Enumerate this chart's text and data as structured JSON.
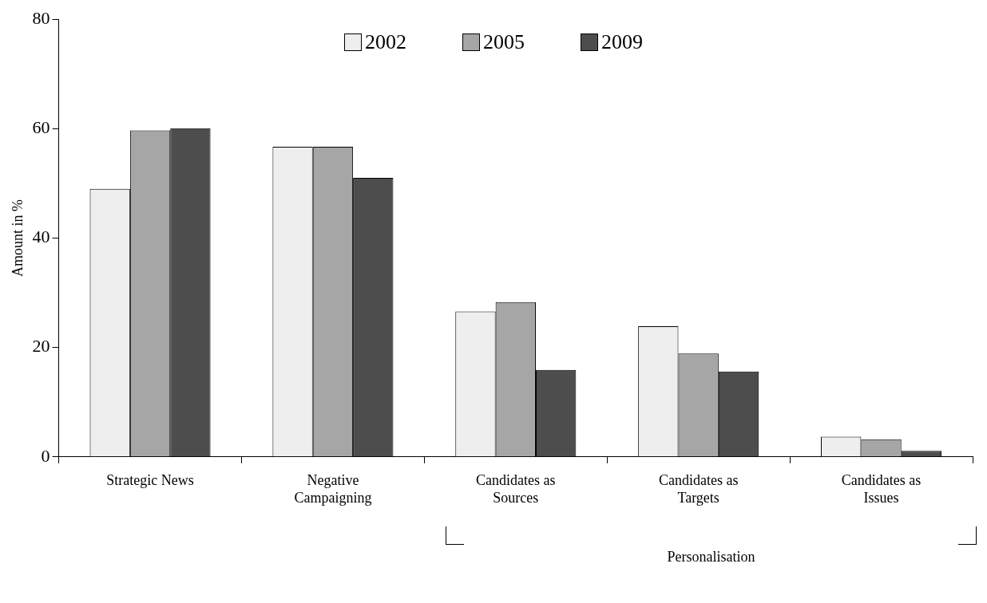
{
  "chart_data": {
    "type": "bar",
    "ylabel": "Amount in %",
    "categories": [
      "Strategic News",
      "Negative Campaigning",
      "Candidates as Sources",
      "Candidates as Targets",
      "Candidates as Issues"
    ],
    "series": [
      {
        "name": "2002",
        "color": "#eeeeee",
        "values": [
          49.0,
          56.7,
          26.6,
          23.9,
          3.7
        ]
      },
      {
        "name": "2005",
        "color": "#a6a6a6",
        "values": [
          59.7,
          56.7,
          28.3,
          18.9,
          3.2
        ]
      },
      {
        "name": "2009",
        "color": "#4d4d4d",
        "values": [
          60.1,
          51.0,
          15.9,
          15.6,
          1.1
        ]
      }
    ],
    "ylim": [
      0,
      80
    ],
    "yticks": [
      0,
      20,
      40,
      60,
      80
    ],
    "grid": false,
    "legend": "top",
    "annotations": [
      "Personalisation"
    ]
  }
}
